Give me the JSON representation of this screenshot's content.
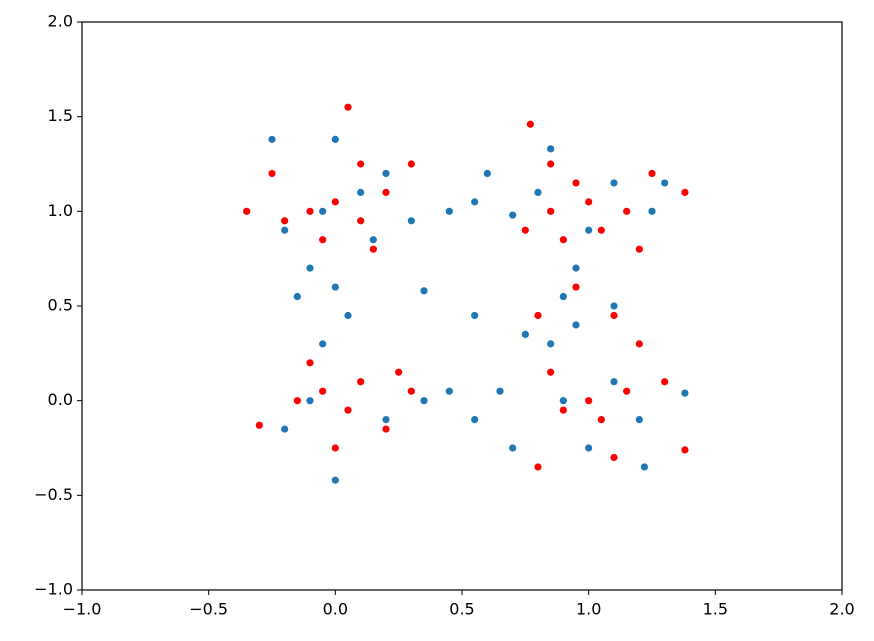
{
  "chart_data": {
    "type": "scatter",
    "xlim": [
      -1,
      2
    ],
    "ylim": [
      -1,
      2
    ],
    "xticks": [
      {
        "value": -1,
        "label": "−1.0"
      },
      {
        "value": -0.5,
        "label": "−0.5"
      },
      {
        "value": 0,
        "label": "0.0"
      },
      0.5,
      {
        "value": 1,
        "label": "1.0"
      },
      1.5,
      {
        "value": 2,
        "label": "2.0"
      }
    ],
    "yticks": [
      {
        "value": -1,
        "label": "−1.0"
      },
      {
        "value": -0.5,
        "label": "−0.5"
      },
      {
        "value": 0,
        "label": "0.0"
      },
      0.5,
      {
        "value": 1,
        "label": "1.0"
      },
      1.5,
      {
        "value": 2,
        "label": "2.0"
      }
    ],
    "series": [
      {
        "color": "#1f77b4",
        "x": [
          -0.05,
          0.1,
          -0.2,
          0.15,
          -0.25,
          0.0,
          0.2,
          -0.1,
          0.0,
          -0.15,
          0.05,
          -0.05,
          0.3,
          0.45,
          0.55,
          0.6,
          0.7,
          0.8,
          0.85,
          1.0,
          1.1,
          1.25,
          1.3,
          0.95,
          0.9,
          0.95,
          0.85,
          1.1,
          0.55,
          0.35,
          -0.1,
          0.1,
          -0.2,
          0.2,
          0.0,
          0.35,
          0.45,
          0.55,
          0.7,
          0.65,
          0.9,
          1.1,
          1.2,
          1.38,
          1.22,
          1.0,
          0.75
        ],
        "values": [
          1.0,
          1.1,
          0.9,
          0.85,
          1.38,
          1.38,
          1.2,
          0.7,
          0.6,
          0.55,
          0.45,
          0.3,
          0.95,
          1.0,
          1.05,
          1.2,
          0.98,
          1.1,
          1.33,
          0.9,
          1.15,
          1.0,
          1.15,
          0.7,
          0.55,
          0.4,
          0.3,
          0.5,
          0.45,
          0.58,
          0.0,
          0.1,
          -0.15,
          -0.1,
          -0.42,
          0.0,
          0.05,
          -0.1,
          -0.25,
          0.05,
          0.0,
          0.1,
          -0.1,
          0.04,
          -0.35,
          -0.25,
          0.35
        ]
      },
      {
        "color": "#ff0000",
        "x": [
          0.05,
          -0.35,
          -0.1,
          0.0,
          0.1,
          -0.05,
          0.2,
          0.3,
          -0.2,
          0.15,
          -0.25,
          0.1,
          0.77,
          0.85,
          1.0,
          1.05,
          0.95,
          1.15,
          1.25,
          1.38,
          0.9,
          1.2,
          0.85,
          0.75,
          0.95,
          1.1,
          0.8,
          -0.05,
          0.05,
          0.1,
          -0.15,
          0.2,
          0.0,
          0.25,
          -0.3,
          0.3,
          -0.1,
          1.0,
          0.9,
          1.05,
          1.15,
          1.1,
          0.8,
          1.3,
          1.38,
          0.85,
          1.2
        ],
        "values": [
          1.55,
          1.0,
          1.0,
          1.05,
          0.95,
          0.85,
          1.1,
          1.25,
          0.95,
          0.8,
          1.2,
          1.25,
          1.46,
          1.0,
          1.05,
          0.9,
          1.15,
          1.0,
          1.2,
          1.1,
          0.85,
          0.8,
          1.25,
          0.9,
          0.6,
          0.45,
          0.45,
          0.05,
          -0.05,
          0.1,
          0.0,
          -0.15,
          -0.25,
          0.15,
          -0.13,
          0.05,
          0.2,
          0.0,
          -0.05,
          -0.1,
          0.05,
          -0.3,
          -0.35,
          0.1,
          -0.26,
          0.15,
          0.3
        ]
      }
    ]
  }
}
